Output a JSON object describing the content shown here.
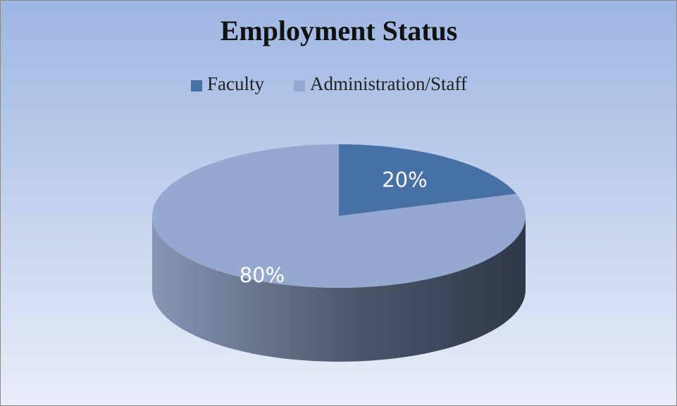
{
  "chart_data": {
    "type": "pie",
    "title": "Employment Status",
    "categories": [
      "Faculty",
      "Administration/Staff"
    ],
    "values": [
      20,
      80
    ],
    "value_labels": [
      "20%",
      "80%"
    ],
    "colors": [
      "#4670a6",
      "#95a9d0"
    ],
    "legend": "top",
    "three_d": true
  }
}
